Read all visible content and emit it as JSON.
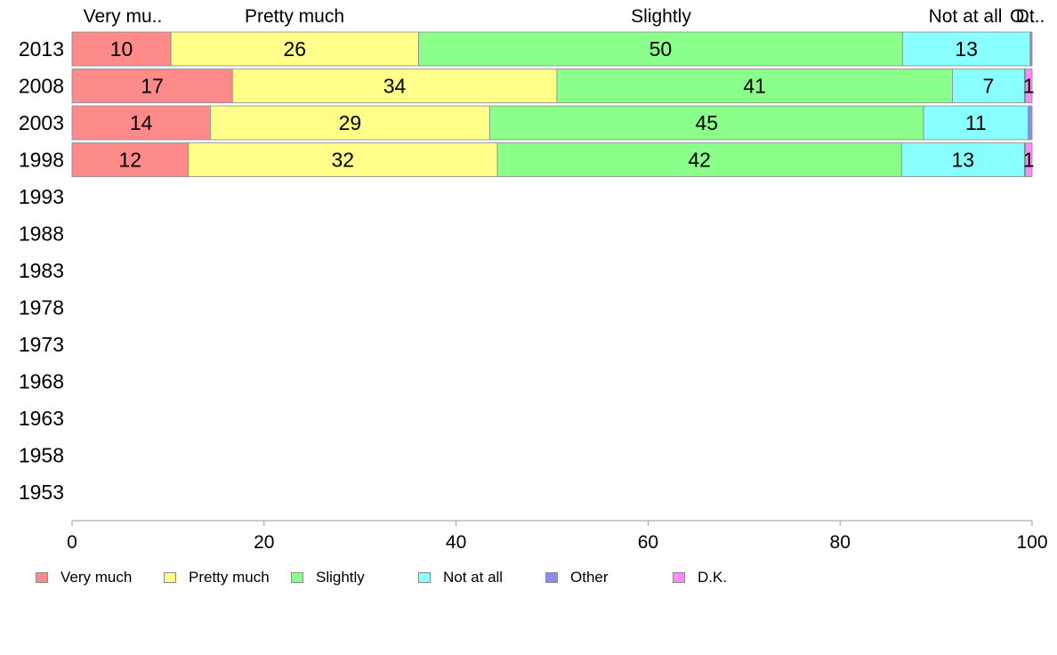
{
  "chart_data": {
    "type": "bar",
    "orientation": "horizontal",
    "stacked": true,
    "title": "",
    "xlabel": "",
    "ylabel": "",
    "xlim": [
      0,
      100
    ],
    "x_ticks": [
      "0",
      "20",
      "40",
      "60",
      "80",
      "100"
    ],
    "categories": [
      "2013",
      "2008",
      "2003",
      "1998",
      "1993",
      "1988",
      "1983",
      "1978",
      "1973",
      "1968",
      "1963",
      "1958",
      "1953"
    ],
    "top_labels": [
      "Very mu..",
      "Pretty much",
      "Slightly",
      "Not at all",
      "O..",
      "Dt.."
    ],
    "series": [
      {
        "name": "Very much",
        "color": "#FF8A8A",
        "values": [
          10.3,
          16.7,
          14.4,
          12.1,
          null,
          null,
          null,
          null,
          null,
          null,
          null,
          null,
          null
        ],
        "labels": [
          "10",
          "17",
          "14",
          "12"
        ]
      },
      {
        "name": "Pretty much",
        "color": "#FFFF8A",
        "values": [
          25.8,
          33.8,
          29.1,
          32.2,
          null,
          null,
          null,
          null,
          null,
          null,
          null,
          null,
          null
        ],
        "labels": [
          "26",
          "34",
          "29",
          "32"
        ]
      },
      {
        "name": "Slightly",
        "color": "#8AFF8A",
        "values": [
          50.4,
          41.2,
          45.2,
          42.1,
          null,
          null,
          null,
          null,
          null,
          null,
          null,
          null,
          null
        ],
        "labels": [
          "50",
          "41",
          "45",
          "42"
        ]
      },
      {
        "name": "Not at all",
        "color": "#8AFFFF",
        "values": [
          13.3,
          7.5,
          10.9,
          12.8,
          null,
          null,
          null,
          null,
          null,
          null,
          null,
          null,
          null
        ],
        "labels": [
          "13",
          "7",
          "11",
          "13"
        ]
      },
      {
        "name": "Other",
        "color": "#8A8AFF",
        "values": [
          0.1,
          0.1,
          0.3,
          0.1,
          null,
          null,
          null,
          null,
          null,
          null,
          null,
          null,
          null
        ],
        "labels": [
          "",
          "",
          "",
          ""
        ]
      },
      {
        "name": "D.K.",
        "color": "#FF8AFF",
        "values": [
          0.1,
          0.7,
          0.1,
          0.7,
          null,
          null,
          null,
          null,
          null,
          null,
          null,
          null,
          null
        ],
        "labels": [
          "",
          "1",
          "",
          "1"
        ]
      }
    ],
    "grid": false,
    "legend_position": "bottom"
  }
}
